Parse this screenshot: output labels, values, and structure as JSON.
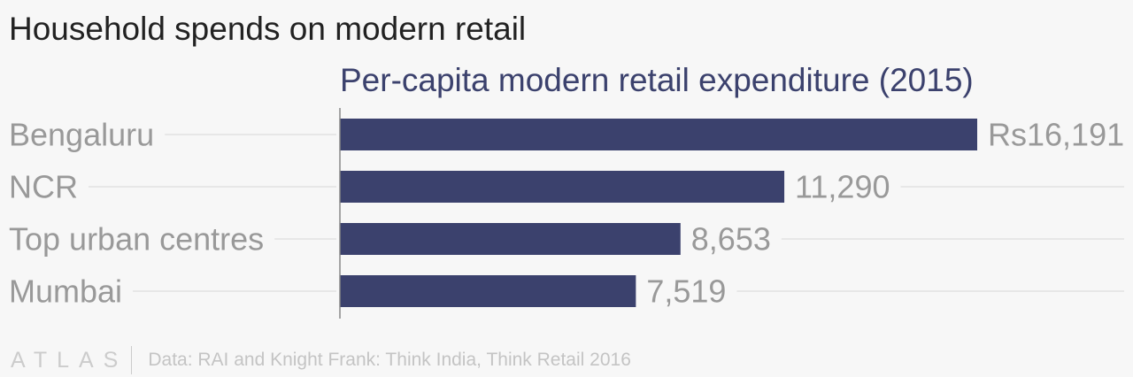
{
  "header": {
    "title": "Household spends on modern retail",
    "subtitle": "Per-capita modern retail expenditure (2015)"
  },
  "footer": {
    "brand": "ATLAS",
    "source": "Data: RAI and Knight Frank: Think India, Think Retail 2016"
  },
  "colors": {
    "bar": "#3b416d",
    "category_label": "#999999",
    "value_label": "#999999",
    "gridline": "#e2e2e2",
    "axis": "#888888"
  },
  "chart_data": {
    "type": "bar",
    "orientation": "horizontal",
    "title": "Household spends on modern retail",
    "subtitle": "Per-capita modern retail expenditure (2015)",
    "categories": [
      "Bengaluru",
      "NCR",
      "Top urban centres",
      "Mumbai"
    ],
    "values": [
      16191,
      11290,
      8653,
      7519
    ],
    "value_labels": [
      "Rs16,191",
      "11,290",
      "8,653",
      "7,519"
    ],
    "xlim": [
      0,
      16191
    ],
    "grid": false,
    "legend": "none"
  }
}
